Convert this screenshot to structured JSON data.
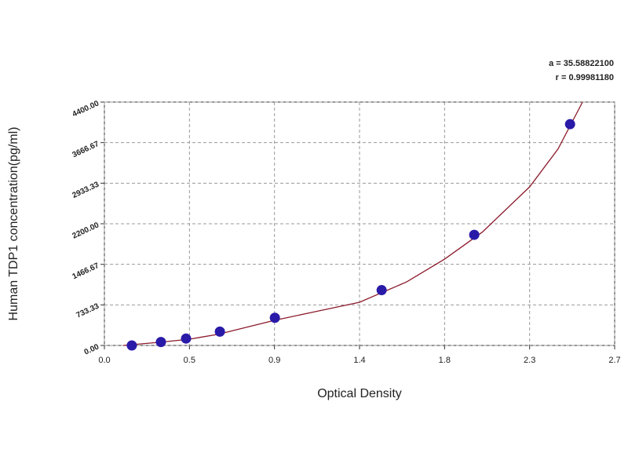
{
  "chart_data": {
    "type": "scatter",
    "annotations": [
      "a = 35.58822100",
      "r = 0.99981180"
    ],
    "xlabel": "Optical Density",
    "ylabel": "Human TDP1 concentration(pg/ml)",
    "xlim": [
      0,
      2.7
    ],
    "ylim": [
      0,
      4400
    ],
    "xticks": [
      {
        "value": 0,
        "label": "0.0"
      },
      {
        "value": 0.45,
        "label": "0.5"
      },
      0.9,
      {
        "value": 1.35,
        "label": "1.4"
      },
      1.8,
      {
        "value": 2.25,
        "label": "2.3"
      },
      2.7
    ],
    "yticks": [
      {
        "value": 0,
        "label": "0.00"
      },
      733.33,
      1466.67,
      {
        "value": 2200,
        "label": "2200.00"
      },
      2933.33,
      3666.67,
      {
        "value": 4400,
        "label": "4400.00"
      }
    ],
    "grid": true,
    "series": [
      {
        "type": "line",
        "color": "#8b1a2a",
        "x": [
          0.1,
          0.3,
          0.45,
          0.6,
          0.9,
          1.1,
          1.35,
          1.6,
          1.8,
          2.0,
          2.25,
          2.4,
          2.53
        ],
        "values": [
          0,
          60,
          114,
          200,
          454,
          600,
          781,
          1150,
          1561,
          2050,
          2867,
          3550,
          4400
        ]
      },
      {
        "type": "scatter",
        "color": "#2a1aa8",
        "x": [
          0.145,
          0.299,
          0.432,
          0.611,
          0.902,
          1.467,
          1.957,
          2.464
        ],
        "values": [
          0,
          62.5,
          125,
          250,
          500,
          1000,
          2000,
          4000
        ]
      }
    ]
  }
}
